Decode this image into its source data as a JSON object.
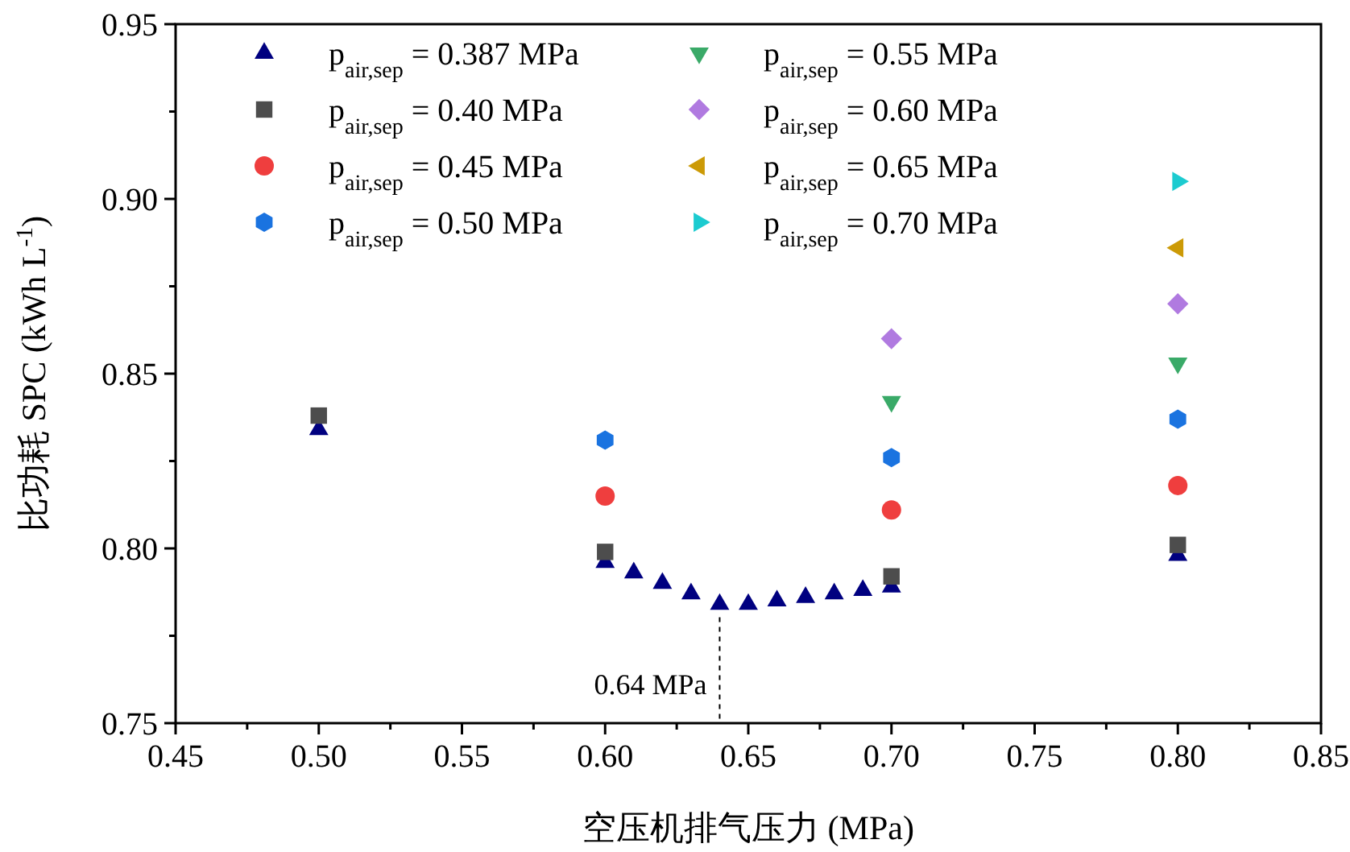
{
  "chart_data": {
    "type": "scatter",
    "xlabel": "空压机排气压力 (MPa)",
    "ylabel": "比功耗 SPC (kWh L$^{-1}$)",
    "xlim": [
      0.45,
      0.85
    ],
    "xticks": [
      0.45,
      {
        "value": 0.475,
        "label": null
      },
      {
        "value": 0.5,
        "label": "0.50"
      },
      {
        "value": 0.525,
        "label": null
      },
      0.55,
      {
        "value": 0.575,
        "label": null
      },
      {
        "value": 0.6,
        "label": "0.60"
      },
      {
        "value": 0.625,
        "label": null
      },
      0.65,
      {
        "value": 0.675,
        "label": null
      },
      {
        "value": 0.7,
        "label": "0.70"
      },
      {
        "value": 0.725,
        "label": null
      },
      0.75,
      {
        "value": 0.775,
        "label": null
      },
      {
        "value": 0.8,
        "label": "0.80"
      },
      {
        "value": 0.825,
        "label": null
      },
      0.85
    ],
    "ylim": [
      0.75,
      0.95
    ],
    "yticks": [
      0.75,
      {
        "value": 0.775,
        "label": null
      },
      {
        "value": 0.8,
        "label": "0.80"
      },
      {
        "value": 0.825,
        "label": null
      },
      0.85,
      {
        "value": 0.875,
        "label": null
      },
      {
        "value": 0.9,
        "label": "0.90"
      },
      {
        "value": 0.925,
        "label": null
      },
      0.95
    ],
    "grid": false,
    "legend": "top",
    "annotations": [
      {
        "text": "0.64 MPa",
        "x": 0.64,
        "y": 0.784
      }
    ],
    "series": [
      {
        "name": "p$_{air,sep}$ = 0.387 MPa",
        "color": "#000080",
        "marker": "triangle",
        "x": [
          0.5,
          0.6,
          0.61,
          0.62,
          0.63,
          0.64,
          0.65,
          0.66,
          0.67,
          0.68,
          0.69,
          0.7,
          0.8
        ],
        "values": [
          0.834,
          0.796,
          0.793,
          0.79,
          0.787,
          0.784,
          0.784,
          0.785,
          0.786,
          0.787,
          0.788,
          0.789,
          0.798
        ]
      },
      {
        "name": "p$_{air,sep}$ = 0.40 MPa",
        "color": "#4d4d4d",
        "marker": "square",
        "x": [
          0.5,
          0.6,
          0.7,
          0.8
        ],
        "values": [
          0.838,
          0.799,
          0.792,
          0.801
        ]
      },
      {
        "name": "p$_{air,sep}$ = 0.45 MPa",
        "color": "#ef3e3e",
        "marker": "circle",
        "x": [
          0.6,
          0.7,
          0.8
        ],
        "values": [
          0.815,
          0.811,
          0.818
        ]
      },
      {
        "name": "p$_{air,sep}$ = 0.50 MPa",
        "color": "#1a73e0",
        "x": [
          0.6,
          0.7,
          0.8
        ],
        "values": [
          0.831,
          0.826,
          0.837
        ]
      },
      {
        "name": "p$_{air,sep}$ = 0.55 MPa",
        "color": "#3aaa68",
        "marker": "triangle-down",
        "x": [
          0.7,
          0.8
        ],
        "values": [
          0.842,
          0.853
        ]
      },
      {
        "name": "p$_{air,sep}$ = 0.60 MPa",
        "color": "#b07ae0",
        "marker": "diamond",
        "x": [
          0.7,
          0.8
        ],
        "values": [
          0.86,
          0.87
        ]
      },
      {
        "name": "p$_{air,sep}$ = 0.65 MPa",
        "color": "#cc9a06",
        "marker": "triangle-left",
        "x": [
          0.8
        ],
        "values": [
          0.886
        ]
      },
      {
        "name": "p$_{air,sep}$ = 0.70 MPa",
        "color": "#1ccbd0",
        "marker": "triangle-right",
        "x": [
          0.8
        ],
        "values": [
          0.905
        ]
      }
    ]
  }
}
